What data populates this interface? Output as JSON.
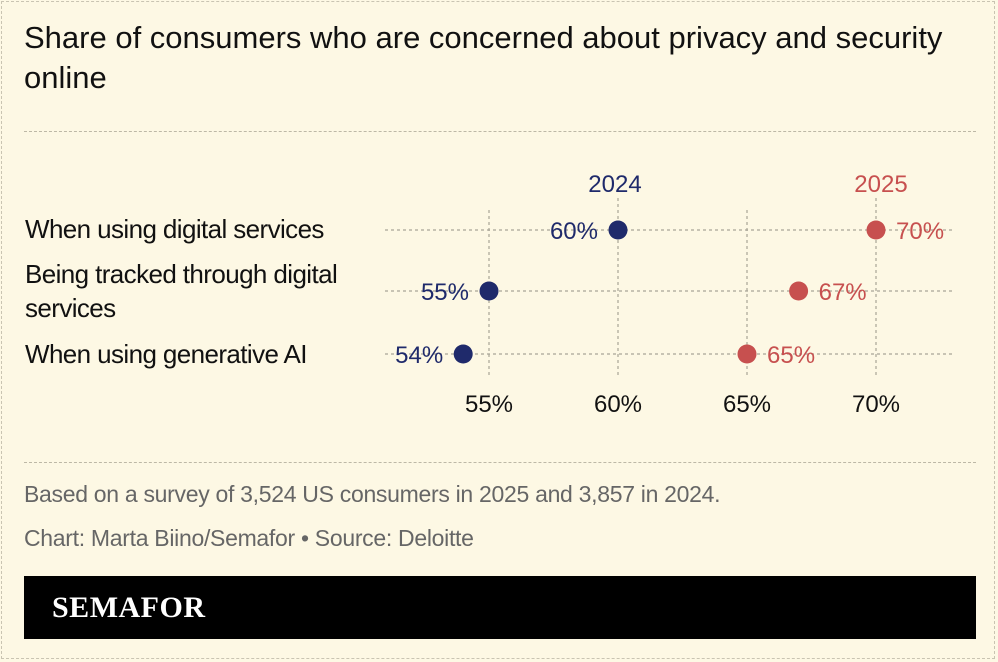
{
  "title": "Share of consumers who are concerned about privacy and security online",
  "chart_data": {
    "type": "dumbbell",
    "xlim": [
      52,
      71
    ],
    "x_ticks": [
      55,
      60,
      65,
      70
    ],
    "x_tick_labels": [
      "55%",
      "60%",
      "65%",
      "70%"
    ],
    "series": [
      {
        "name": "2024",
        "color": "#1f2a6b"
      },
      {
        "name": "2025",
        "color": "#c7504f"
      }
    ],
    "categories": [
      {
        "label": "When using digital services",
        "v2024": 60,
        "v2025": 70,
        "l2024": "60%",
        "l2025": "70%"
      },
      {
        "label": "Being tracked through digital services",
        "v2024": 55,
        "v2025": 67,
        "l2024": "55%",
        "l2025": "67%"
      },
      {
        "label": "When using generative AI",
        "v2024": 54,
        "v2025": 65,
        "l2024": "54%",
        "l2025": "65%"
      }
    ],
    "grid": true
  },
  "footnote": "Based on a survey of 3,524 US consumers in 2025 and 3,857 in 2024.",
  "credit": "Chart: Marta Biino/Semafor • Source: Deloitte",
  "brand": "SEMAFOR",
  "colors": {
    "background": "#fdf8e4",
    "series_2024": "#1f2a6b",
    "series_2025": "#c7504f",
    "brandbar": "#000000"
  }
}
